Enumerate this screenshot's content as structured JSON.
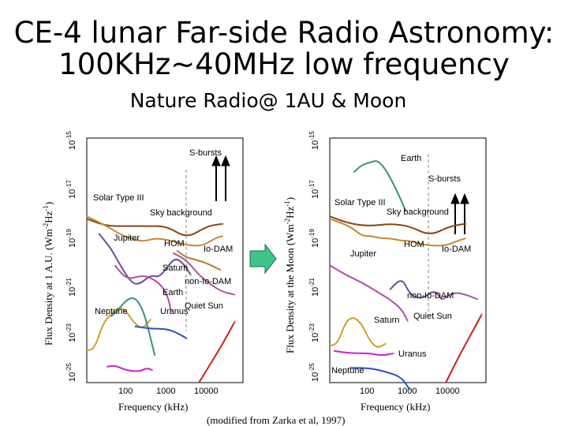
{
  "header": {
    "title_line1": "CE-4 lunar Far-side Radio Astronomy:",
    "title_line2": "100KHz~40MHz low frequency",
    "subtitle": "Nature Radio@ 1AU & Moon"
  },
  "credit": "(modified from Zarka et al, 1997)",
  "arrow_color": "#3cc48c",
  "chart_data": [
    {
      "type": "line",
      "scale": "log-log",
      "xlabel": "Frequency (kHz)",
      "ylabel": "Flux Density at 1 A.U. (Wm-2Hz-1)",
      "x_ticks": [
        "100",
        "1000",
        "10000"
      ],
      "y_ticks": [
        "10-15",
        "10-17",
        "10-19",
        "10-21",
        "10-23",
        "10-25"
      ],
      "xlim_log10": [
        1,
        4.9
      ],
      "ylim_log10": [
        -25,
        -15
      ],
      "series": [
        {
          "name": "S-bursts",
          "color": "#8b4513",
          "x_log10": [
            1.0,
            1.5,
            2.0,
            2.5,
            3.0,
            3.5,
            4.0,
            4.4
          ],
          "y_log10": [
            -18.3,
            -18.6,
            -18.6,
            -18.6,
            -18.6,
            -19.1,
            -18.6,
            -18.5
          ]
        },
        {
          "name": "Solar Type III",
          "color": "#c58a2e",
          "x_log10": [
            1.0,
            1.5,
            1.8,
            2.0,
            2.3,
            2.5,
            2.7,
            3.0,
            3.3,
            3.6,
            3.9,
            4.2,
            4.4
          ],
          "y_log10": [
            -18.2,
            -18.6,
            -18.9,
            -19.05,
            -19.2,
            -19.2,
            -19.1,
            -19.15,
            -19.3,
            -19.4,
            -19.4,
            -19.1,
            -19.0
          ]
        },
        {
          "name": "Sky background",
          "color": "#b87a2e",
          "x_log10": [
            3.25,
            3.5,
            3.8,
            4.1,
            4.35
          ],
          "y_log10": [
            -19.6,
            -19.9,
            -20.0,
            -20.2,
            -20.4
          ]
        },
        {
          "name": "HOM",
          "color": "#6a4c93",
          "x_log10": [
            1.3,
            1.6,
            1.8,
            2.1,
            2.3,
            2.6,
            2.8,
            3.0,
            3.2,
            3.4,
            3.6
          ],
          "y_log10": [
            -18.9,
            -19.5,
            -20.1,
            -20.9,
            -21.0,
            -20.6,
            -20.7,
            -20.3,
            -19.9,
            -20.1,
            -20.6
          ]
        },
        {
          "name": "Jupiter",
          "color": "#b04fa6",
          "x_log10": [
            1.7,
            2.0,
            2.4,
            2.7,
            2.9,
            3.05,
            3.1
          ],
          "y_log10": [
            -20.2,
            -20.8,
            -20.6,
            -20.8,
            -21.1,
            -21.6,
            -22.1
          ]
        },
        {
          "name": "Io-DAM",
          "color": "#a05a9a",
          "x_log10": [
            3.15,
            3.4,
            3.6,
            3.8,
            4.1,
            4.4,
            4.7
          ],
          "y_log10": [
            -19.7,
            -19.9,
            -20.2,
            -20.6,
            -21.0,
            -21.3,
            -21.4
          ]
        },
        {
          "name": "Saturn",
          "color": "#c9a227",
          "x_log10": [
            1.0,
            1.2,
            1.4,
            1.6,
            1.8,
            2.0,
            2.2,
            2.4,
            2.6
          ],
          "y_log10": [
            -23.7,
            -23.6,
            -22.6,
            -22.2,
            -21.9,
            -22.1,
            -22.6,
            -22.8,
            -22.4
          ]
        },
        {
          "name": "Earth",
          "color": "#3c8f83",
          "x_log10": [
            1.6,
            1.8,
            2.0,
            2.2,
            2.4,
            2.55,
            2.7
          ],
          "y_log10": [
            -22.3,
            -22.0,
            -21.6,
            -21.5,
            -22.0,
            -22.9,
            -23.9
          ]
        },
        {
          "name": "Neptune",
          "color": "#d020d0",
          "x_log10": [
            1.5,
            1.7,
            2.0,
            2.3,
            2.5,
            2.65
          ],
          "y_log10": [
            -24.35,
            -24.3,
            -24.5,
            -24.55,
            -24.4,
            -24.5
          ]
        },
        {
          "name": "Uranus",
          "color": "#3050c0",
          "x_log10": [
            2.2,
            2.6,
            3.0,
            3.3,
            3.5
          ],
          "y_log10": [
            -22.7,
            -22.8,
            -22.8,
            -23.0,
            -23.2
          ]
        },
        {
          "name": "Quiet Sun",
          "color": "#d02020",
          "x_log10": [
            3.8,
            4.1,
            4.4,
            4.7
          ],
          "y_log10": [
            -25.0,
            -24.2,
            -23.4,
            -22.5
          ]
        }
      ],
      "labels": [
        "S-bursts",
        "Solar Type III",
        "Sky background",
        "Jupiter",
        "HOM",
        "Io-DAM",
        "Saturn",
        "non-Io-DAM",
        "Earth",
        "Quiet Sun",
        "Neptune",
        "Uranus"
      ]
    },
    {
      "type": "line",
      "scale": "log-log",
      "xlabel": "Frequency (kHz)",
      "ylabel": "Flux Density at the Moon (Wm-2Hz-1)",
      "x_ticks": [
        "100",
        "1000",
        "10000"
      ],
      "y_ticks": [
        "10-15",
        "10-17",
        "10-19",
        "10-21",
        "10-23",
        "10-25"
      ],
      "xlim_log10": [
        1,
        4.9
      ],
      "ylim_log10": [
        -25,
        -15
      ],
      "series": [
        {
          "name": "Earth",
          "color": "#3c8f83",
          "x_log10": [
            1.6,
            1.8,
            2.0,
            2.2,
            2.4,
            2.6,
            2.8,
            2.9
          ],
          "y_log10": [
            -16.4,
            -16.1,
            -16.0,
            -15.9,
            -16.3,
            -16.9,
            -17.6,
            -18.0
          ]
        },
        {
          "name": "S-bursts",
          "color": "#8b4513",
          "x_log10": [
            1.0,
            1.5,
            2.0,
            2.5,
            3.0,
            3.5,
            4.0,
            4.4
          ],
          "y_log10": [
            -18.2,
            -18.5,
            -18.6,
            -18.5,
            -18.6,
            -19.0,
            -18.6,
            -18.5
          ]
        },
        {
          "name": "Solar Type III",
          "color": "#c58a2e",
          "x_log10": [
            1.0,
            1.5,
            1.8,
            2.0,
            2.3,
            2.5,
            2.8,
            3.0,
            3.3,
            3.6,
            3.9,
            4.2,
            4.4
          ],
          "y_log10": [
            -18.3,
            -18.6,
            -19.0,
            -19.0,
            -19.1,
            -19.1,
            -19.2,
            -19.2,
            -19.35,
            -19.4,
            -19.4,
            -19.2,
            -19.1
          ]
        },
        {
          "name": "Jupiter",
          "color": "#b04fa6",
          "x_log10": [
            1.0,
            1.4,
            1.8,
            2.2,
            2.5,
            2.8,
            2.95
          ],
          "y_log10": [
            -20.2,
            -20.6,
            -20.9,
            -21.3,
            -21.6,
            -22.0,
            -22.5
          ]
        },
        {
          "name": "HOM",
          "color": "#6a4c93",
          "x_log10": [
            2.5,
            2.8,
            3.0,
            3.3,
            3.6,
            3.8
          ],
          "y_log10": [
            -21.2,
            -20.7,
            -21.4,
            -21.6,
            -21.2,
            -21.6
          ]
        },
        {
          "name": "Io-DAM",
          "color": "#a05a9a",
          "x_log10": [
            3.8,
            4.1,
            4.4,
            4.7
          ],
          "y_log10": [
            -21.6,
            -21.3,
            -21.4,
            -21.6
          ]
        },
        {
          "name": "Saturn",
          "color": "#c9a227",
          "x_log10": [
            1.0,
            1.2,
            1.4,
            1.6,
            1.8,
            2.0,
            2.2,
            2.4
          ],
          "y_log10": [
            -23.5,
            -23.4,
            -22.5,
            -22.3,
            -22.6,
            -23.3,
            -23.6,
            -23.4
          ]
        },
        {
          "name": "Uranus",
          "color": "#d020d0",
          "x_log10": [
            1.1,
            1.5,
            2.0,
            2.3,
            2.6
          ],
          "y_log10": [
            -23.7,
            -23.8,
            -23.8,
            -23.9,
            -23.8
          ]
        },
        {
          "name": "Neptune",
          "color": "#3050c0",
          "x_log10": [
            1.5,
            2.0,
            2.5,
            2.8,
            3.0
          ],
          "y_log10": [
            -24.4,
            -24.4,
            -24.6,
            -24.8,
            -25.3
          ]
        },
        {
          "name": "Quiet Sun",
          "color": "#d02020",
          "x_log10": [
            3.9,
            4.2,
            4.5,
            4.8
          ],
          "y_log10": [
            -25.0,
            -24.0,
            -23.1,
            -22.2
          ]
        }
      ],
      "labels": [
        "Earth",
        "S-bursts",
        "Solar Type III",
        "Sky background",
        "HOM",
        "Io-DAM",
        "Jupiter",
        "non-Io-DAM",
        "Saturn",
        "Quiet Sun",
        "Uranus",
        "Neptune"
      ]
    }
  ]
}
